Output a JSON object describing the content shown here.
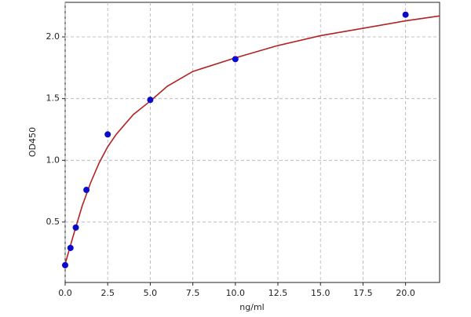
{
  "chart_data": {
    "type": "scatter",
    "x_label": "ng/ml",
    "y_label": "OD450",
    "x": [
      0,
      0.3125,
      0.625,
      1.25,
      2.5,
      5,
      10,
      20
    ],
    "values": [
      0.15,
      0.29,
      0.455,
      0.76,
      1.21,
      1.49,
      1.82,
      2.18
    ],
    "color": "#0a0acc",
    "curve": {
      "color": "#b22222",
      "x": [
        0,
        0.5,
        1,
        1.5,
        2,
        2.5,
        3,
        4,
        5,
        6,
        7.5,
        10,
        12.5,
        15,
        17.5,
        20,
        22
      ],
      "values": [
        0.16,
        0.4,
        0.63,
        0.82,
        0.98,
        1.11,
        1.21,
        1.37,
        1.48,
        1.6,
        1.72,
        1.83,
        1.93,
        2.01,
        2.07,
        2.13,
        2.17
      ]
    },
    "xlim": [
      0,
      22
    ],
    "ylim": [
      0.01,
      2.28
    ],
    "xticks": [
      {
        "value": 0,
        "label": "0.0"
      },
      2.5,
      {
        "value": 5,
        "label": "5.0"
      },
      7.5,
      {
        "value": 10,
        "label": "10.0"
      },
      12.5,
      {
        "value": 15,
        "label": "15.0"
      },
      17.5,
      {
        "value": 20,
        "label": "20.0"
      }
    ],
    "yticks": [
      0.5,
      {
        "value": 1,
        "label": "1.0"
      },
      1.5,
      {
        "value": 2,
        "label": "2.0"
      }
    ],
    "grid": true
  }
}
